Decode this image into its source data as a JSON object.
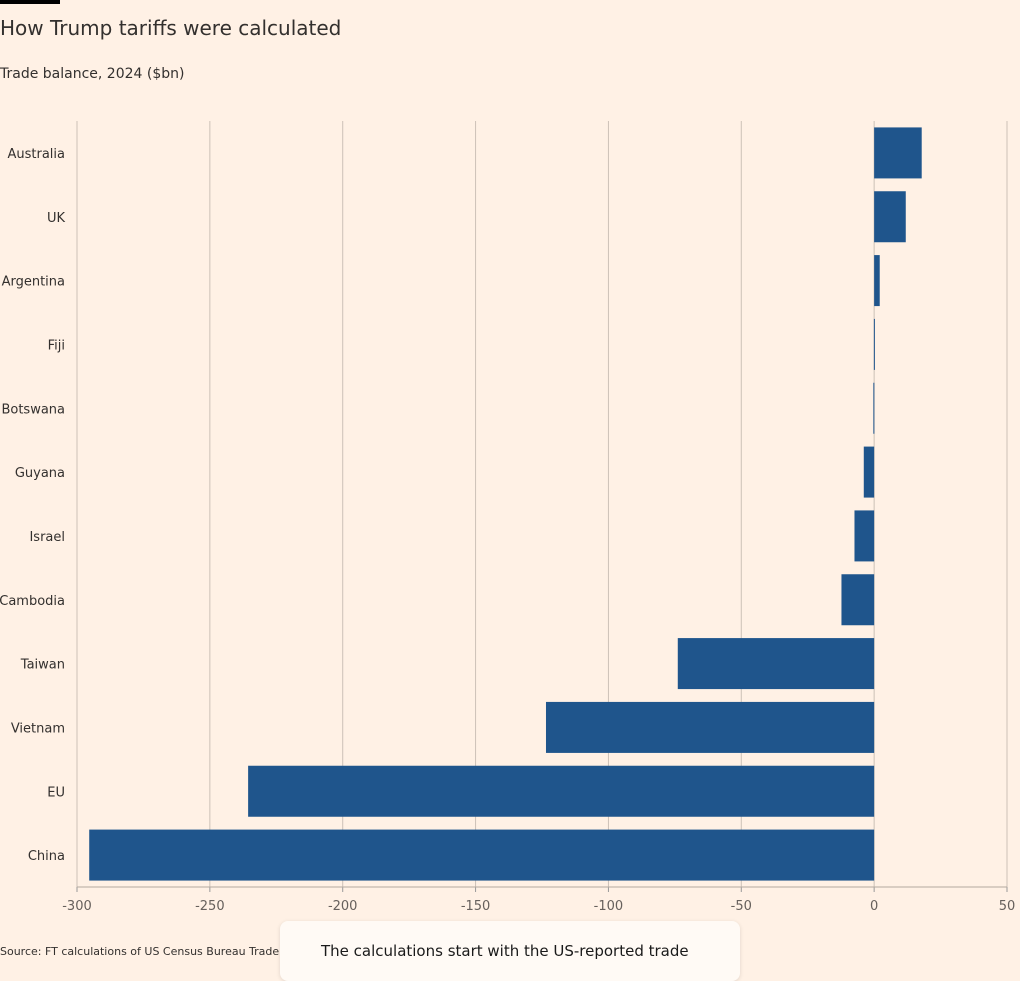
{
  "header": {
    "title": "How Trump tariffs were calculated",
    "subtitle": "Trade balance, 2024 ($bn)"
  },
  "footer": {
    "source": "Source: FT calculations of US Census Bureau Trade Data"
  },
  "note": {
    "text": "The calculations start with the US-reported trade"
  },
  "colors": {
    "bar": "#1f558c",
    "background": "#fff1e5",
    "grid": "#ccc1b7"
  },
  "chart_data": {
    "type": "bar",
    "orientation": "horizontal",
    "categories": [
      "Australia",
      "UK",
      "Argentina",
      "Fiji",
      "Botswana",
      "Guyana",
      "Israel",
      "Cambodia",
      "Taiwan",
      "Vietnam",
      "EU",
      "China"
    ],
    "values": [
      17.9,
      11.9,
      2.1,
      -0.1,
      -0.3,
      -3.9,
      -7.4,
      -12.3,
      -73.9,
      -123.5,
      -235.6,
      -295.4
    ],
    "xlim": [
      -300,
      50
    ],
    "xticks": [
      -300,
      -250,
      -200,
      -150,
      -100,
      -50,
      0,
      50
    ],
    "grid": true,
    "title": "How Trump tariffs were calculated",
    "xlabel": "",
    "ylabel": ""
  }
}
